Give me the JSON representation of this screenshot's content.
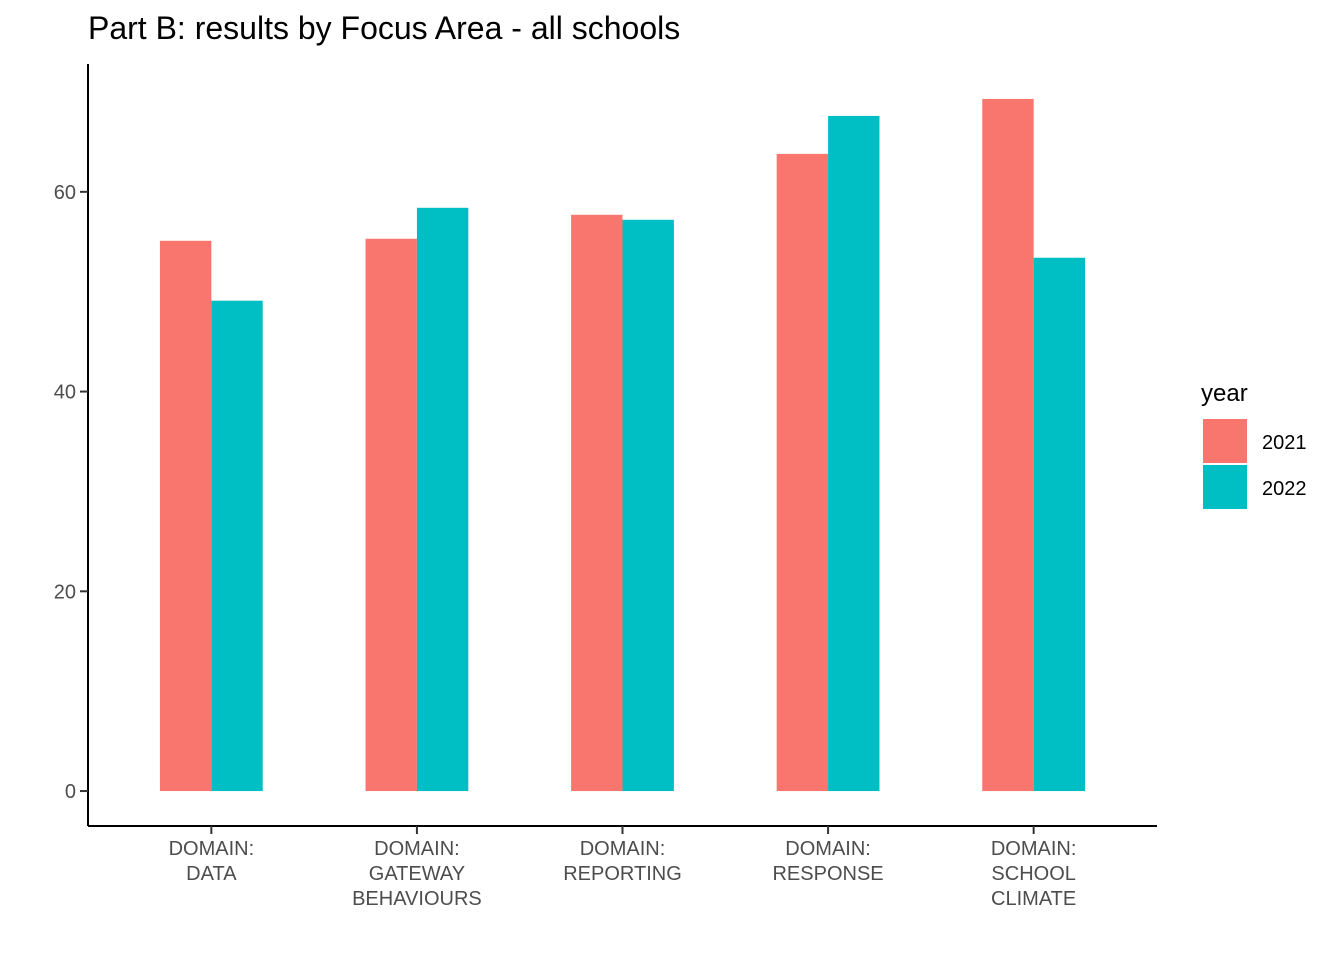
{
  "chart_data": {
    "type": "bar",
    "title": "Part B: results by Focus Area - all schools",
    "xlabel": "",
    "ylabel": "",
    "categories": [
      [
        "DOMAIN:",
        "DATA"
      ],
      [
        "DOMAIN:",
        "GATEWAY",
        "BEHAVIOURS"
      ],
      [
        "DOMAIN:",
        "REPORTING"
      ],
      [
        "DOMAIN:",
        "RESPONSE"
      ],
      [
        "DOMAIN:",
        "SCHOOL",
        "CLIMATE"
      ]
    ],
    "series": [
      {
        "name": "2021",
        "color": "#F8766D",
        "values": [
          55.1,
          55.3,
          57.7,
          63.8,
          69.3
        ]
      },
      {
        "name": "2022",
        "color": "#00BFC4",
        "values": [
          49.1,
          58.4,
          57.2,
          67.6,
          53.4
        ]
      }
    ],
    "yticks": [
      0,
      20,
      40,
      60
    ],
    "ylim": [
      -3.5,
      72.8
    ],
    "grid": false,
    "legend": {
      "title": "year",
      "position": "right"
    }
  }
}
